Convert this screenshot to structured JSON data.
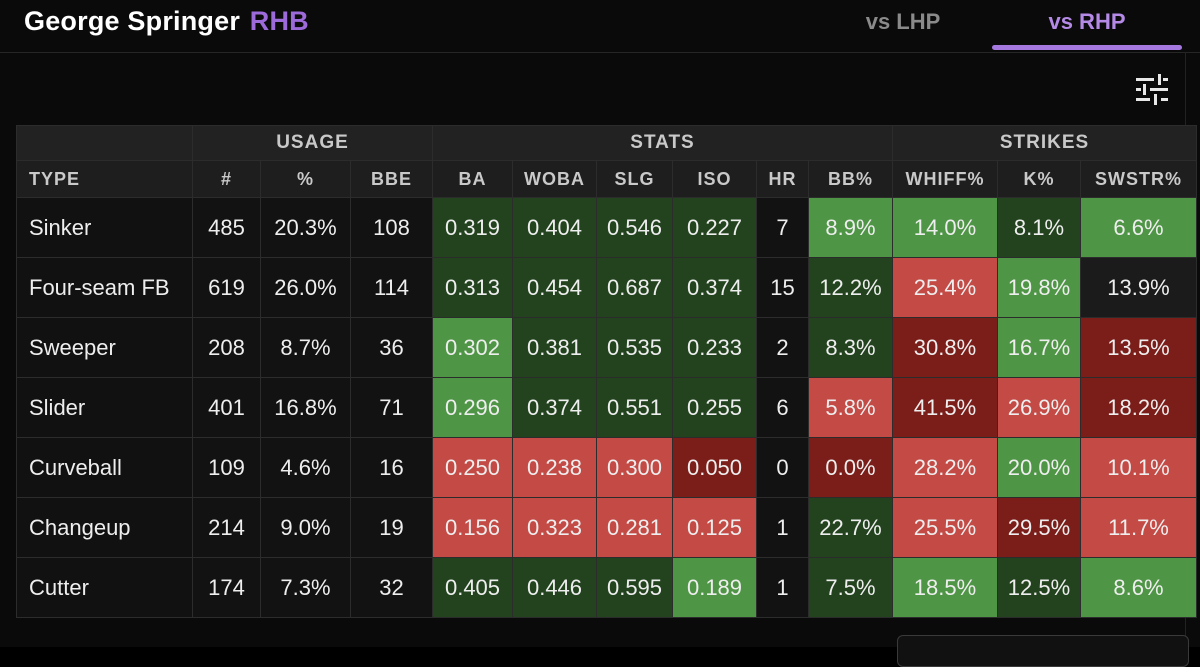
{
  "header": {
    "player_name": "George Springer",
    "handedness": "RHB",
    "tabs": [
      {
        "label": "vs LHP",
        "active": false
      },
      {
        "label": "vs RHP",
        "active": true
      }
    ]
  },
  "toolbar": {
    "filter_icon": "sliders-icon"
  },
  "table": {
    "groups": {
      "usage": "USAGE",
      "stats": "STATS",
      "strikes": "STRIKES"
    },
    "columns": [
      "TYPE",
      "#",
      "%",
      "BBE",
      "BA",
      "WOBA",
      "SLG",
      "ISO",
      "HR",
      "BB%",
      "WHIFF%",
      "K%",
      "SWSTR%"
    ],
    "rows": [
      {
        "type": "Sinker",
        "count": "485",
        "pct": "20.3%",
        "bbe": "108",
        "ba": "0.319",
        "woba": "0.404",
        "slg": "0.546",
        "iso": "0.227",
        "hr": "7",
        "bb": "8.9%",
        "whiff": "14.0%",
        "k": "8.1%",
        "swstr": "6.6%"
      },
      {
        "type": "Four-seam FB",
        "count": "619",
        "pct": "26.0%",
        "bbe": "114",
        "ba": "0.313",
        "woba": "0.454",
        "slg": "0.687",
        "iso": "0.374",
        "hr": "15",
        "bb": "12.2%",
        "whiff": "25.4%",
        "k": "19.8%",
        "swstr": "13.9%"
      },
      {
        "type": "Sweeper",
        "count": "208",
        "pct": "8.7%",
        "bbe": "36",
        "ba": "0.302",
        "woba": "0.381",
        "slg": "0.535",
        "iso": "0.233",
        "hr": "2",
        "bb": "8.3%",
        "whiff": "30.8%",
        "k": "16.7%",
        "swstr": "13.5%"
      },
      {
        "type": "Slider",
        "count": "401",
        "pct": "16.8%",
        "bbe": "71",
        "ba": "0.296",
        "woba": "0.374",
        "slg": "0.551",
        "iso": "0.255",
        "hr": "6",
        "bb": "5.8%",
        "whiff": "41.5%",
        "k": "26.9%",
        "swstr": "18.2%"
      },
      {
        "type": "Curveball",
        "count": "109",
        "pct": "4.6%",
        "bbe": "16",
        "ba": "0.250",
        "woba": "0.238",
        "slg": "0.300",
        "iso": "0.050",
        "hr": "0",
        "bb": "0.0%",
        "whiff": "28.2%",
        "k": "20.0%",
        "swstr": "10.1%"
      },
      {
        "type": "Changeup",
        "count": "214",
        "pct": "9.0%",
        "bbe": "19",
        "ba": "0.156",
        "woba": "0.323",
        "slg": "0.281",
        "iso": "0.125",
        "hr": "1",
        "bb": "22.7%",
        "whiff": "25.5%",
        "k": "29.5%",
        "swstr": "11.7%"
      },
      {
        "type": "Cutter",
        "count": "174",
        "pct": "7.3%",
        "bbe": "32",
        "ba": "0.405",
        "woba": "0.446",
        "slg": "0.595",
        "iso": "0.189",
        "hr": "1",
        "bb": "7.5%",
        "whiff": "18.5%",
        "k": "12.5%",
        "swstr": "8.6%"
      }
    ],
    "cell_colors": [
      {
        "ba": "dark-green",
        "woba": "dark-green",
        "slg": "dark-green",
        "iso": "dark-green",
        "bb": "light-green",
        "whiff": "light-green",
        "k": "dark-green",
        "swstr": "light-green"
      },
      {
        "ba": "dark-green",
        "woba": "dark-green",
        "slg": "dark-green",
        "iso": "dark-green",
        "bb": "dark-green",
        "whiff": "light-red",
        "k": "light-green",
        "swstr": "neutral"
      },
      {
        "ba": "light-green",
        "woba": "dark-green",
        "slg": "dark-green",
        "iso": "dark-green",
        "bb": "dark-green",
        "whiff": "dark-red",
        "k": "light-green",
        "swstr": "dark-red"
      },
      {
        "ba": "light-green",
        "woba": "dark-green",
        "slg": "dark-green",
        "iso": "dark-green",
        "bb": "light-red",
        "whiff": "dark-red",
        "k": "light-red",
        "swstr": "dark-red"
      },
      {
        "ba": "light-red",
        "woba": "light-red",
        "slg": "light-red",
        "iso": "dark-red",
        "bb": "dark-red",
        "whiff": "light-red",
        "k": "light-green",
        "swstr": "light-red"
      },
      {
        "ba": "light-red",
        "woba": "light-red",
        "slg": "light-red",
        "iso": "light-red",
        "bb": "dark-green",
        "whiff": "light-red",
        "k": "dark-red",
        "swstr": "light-red"
      },
      {
        "ba": "dark-green",
        "woba": "dark-green",
        "slg": "dark-green",
        "iso": "light-green",
        "bb": "dark-green",
        "whiff": "light-green",
        "k": "dark-green",
        "swstr": "light-green"
      }
    ]
  },
  "colors": {
    "dark-green": "#23431f",
    "light-green": "#4f9546",
    "light-red": "#c34a45",
    "dark-red": "#7b1e19",
    "neutral": "#1b1b1b",
    "accent": "#a578e0"
  }
}
